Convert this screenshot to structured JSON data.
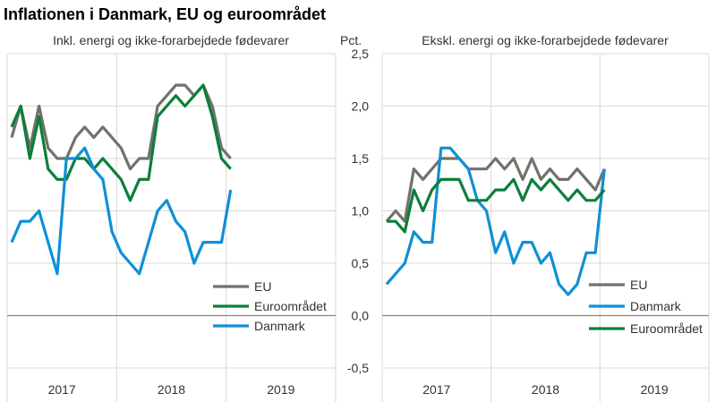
{
  "title": "Inflationen i Danmark, EU og euroområdet",
  "y_unit": "Pct.",
  "colors": {
    "EU": "#74716a",
    "Euroområdet": "#0b7f3b",
    "Danmark": "#0e90d6",
    "grid": "#d9d9d4",
    "axis": "#8a877f"
  },
  "chart_data": [
    {
      "type": "line",
      "title": "Inkl. energi og ikke-forarbejdede fødevarer",
      "ylim": [
        -0.5,
        2.5
      ],
      "y_ticks": [
        "-0,5",
        "0,0",
        "0,5",
        "1,0",
        "1,5",
        "2,0",
        "2,5"
      ],
      "x_tick_labels": [
        "2017",
        "2018",
        "2019"
      ],
      "x_period": "monthly, Jan 2017 – Jan 2019",
      "grid": true,
      "legend": [
        "EU",
        "Euroområdet",
        "Danmark"
      ],
      "series": [
        {
          "name": "EU",
          "values": [
            1.7,
            2.0,
            1.6,
            2.0,
            1.6,
            1.5,
            1.5,
            1.7,
            1.8,
            1.7,
            1.8,
            1.7,
            1.6,
            1.4,
            1.5,
            1.5,
            2.0,
            2.1,
            2.2,
            2.2,
            2.1,
            2.2,
            2.0,
            1.6,
            1.5
          ]
        },
        {
          "name": "Euroområdet",
          "values": [
            1.8,
            2.0,
            1.5,
            1.9,
            1.4,
            1.3,
            1.3,
            1.5,
            1.5,
            1.4,
            1.5,
            1.4,
            1.3,
            1.1,
            1.3,
            1.3,
            1.9,
            2.0,
            2.1,
            2.0,
            2.1,
            2.2,
            1.9,
            1.5,
            1.4
          ]
        },
        {
          "name": "Danmark",
          "values": [
            0.7,
            0.9,
            0.9,
            1.0,
            0.7,
            0.4,
            1.5,
            1.5,
            1.6,
            1.4,
            1.3,
            0.8,
            0.6,
            0.5,
            0.4,
            0.7,
            1.0,
            1.1,
            0.9,
            0.8,
            0.5,
            0.7,
            0.7,
            0.7,
            1.2
          ]
        }
      ]
    },
    {
      "type": "line",
      "title": "Ekskl. energi og ikke-forarbejdede fødevarer",
      "ylim": [
        -0.5,
        2.5
      ],
      "y_ticks": [
        "-0,5",
        "0,0",
        "0,5",
        "1,0",
        "1,5",
        "2,0",
        "2,5"
      ],
      "x_tick_labels": [
        "2017",
        "2018",
        "2019"
      ],
      "x_period": "monthly, Jan 2017 – Jan 2019",
      "grid": true,
      "legend": [
        "EU",
        "Danmark",
        "Euroområdet"
      ],
      "series": [
        {
          "name": "EU",
          "values": [
            0.9,
            1.0,
            0.9,
            1.4,
            1.3,
            1.4,
            1.5,
            1.5,
            1.5,
            1.4,
            1.4,
            1.4,
            1.5,
            1.4,
            1.5,
            1.3,
            1.5,
            1.3,
            1.4,
            1.3,
            1.3,
            1.4,
            1.3,
            1.2,
            1.4
          ]
        },
        {
          "name": "Danmark",
          "values": [
            0.3,
            0.4,
            0.5,
            0.8,
            0.7,
            0.7,
            1.6,
            1.6,
            1.5,
            1.4,
            1.1,
            1.0,
            0.6,
            0.8,
            0.5,
            0.7,
            0.7,
            0.5,
            0.6,
            0.3,
            0.2,
            0.3,
            0.6,
            0.6,
            1.4
          ]
        },
        {
          "name": "Euroområdet",
          "values": [
            0.9,
            0.9,
            0.8,
            1.2,
            1.0,
            1.2,
            1.3,
            1.3,
            1.3,
            1.1,
            1.1,
            1.1,
            1.2,
            1.2,
            1.3,
            1.1,
            1.3,
            1.2,
            1.3,
            1.2,
            1.1,
            1.2,
            1.1,
            1.1,
            1.2
          ]
        }
      ]
    }
  ]
}
